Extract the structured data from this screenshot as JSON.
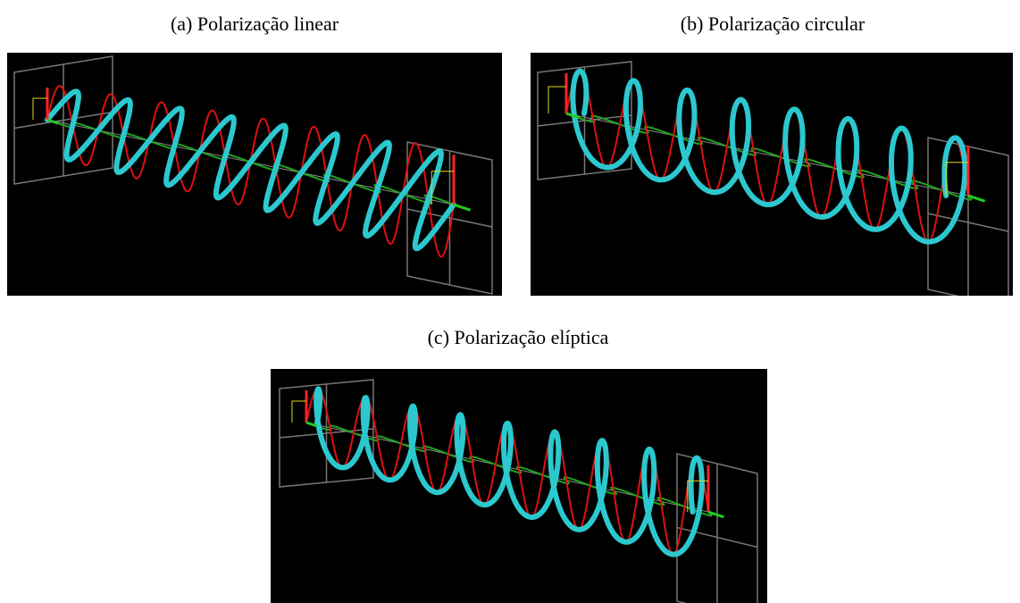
{
  "figure": {
    "panels": [
      {
        "caption": "(a) Polarização linear"
      },
      {
        "caption": "(b) Polarização circular"
      },
      {
        "caption": "(c) Polarização elíptica"
      }
    ]
  }
}
